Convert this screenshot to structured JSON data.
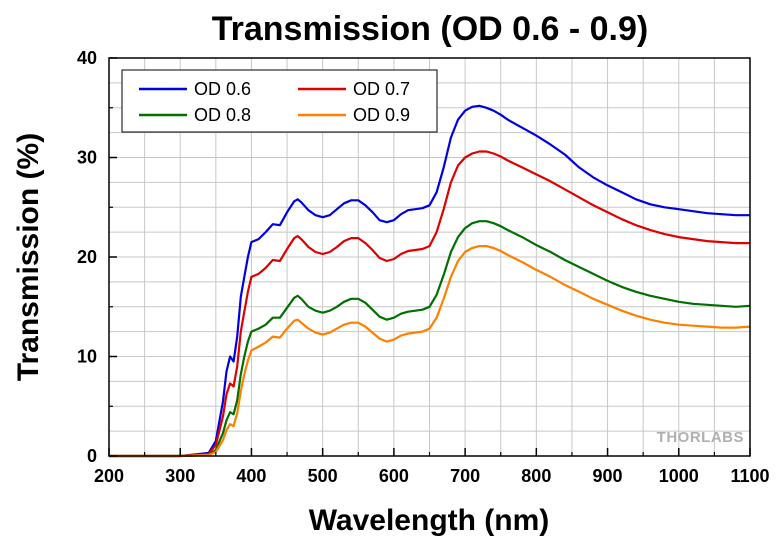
{
  "chart_data": {
    "type": "line",
    "title": "Transmission (OD 0.6 - 0.9)",
    "xlabel": "Wavelength (nm)",
    "ylabel": "Transmission (%)",
    "xlim": [
      200,
      1100
    ],
    "ylim": [
      0,
      40
    ],
    "xticks": [
      "200",
      "300",
      "400",
      "500",
      "600",
      "700",
      "800",
      "900",
      "1000",
      "1100"
    ],
    "yticks": [
      "0",
      "10",
      "20",
      "30",
      "40"
    ],
    "grid": true,
    "legend_position": "top-left",
    "watermark": "THORLABS",
    "series": [
      {
        "name": "OD 0.6",
        "color": "#0000e0",
        "x": [
          200,
          300,
          340,
          350,
          360,
          365,
          370,
          375,
          380,
          385,
          390,
          395,
          400,
          410,
          420,
          430,
          440,
          450,
          460,
          465,
          470,
          480,
          490,
          500,
          510,
          520,
          530,
          540,
          550,
          560,
          570,
          580,
          590,
          600,
          610,
          620,
          630,
          640,
          650,
          660,
          670,
          680,
          690,
          700,
          710,
          720,
          730,
          740,
          750,
          760,
          780,
          800,
          820,
          840,
          860,
          870,
          880,
          900,
          920,
          940,
          960,
          980,
          1000,
          1020,
          1040,
          1060,
          1080,
          1100
        ],
        "y": [
          0,
          0,
          0.3,
          1.5,
          5.5,
          8.5,
          10,
          9.5,
          12,
          16,
          18,
          20,
          21.5,
          21.8,
          22.5,
          23.3,
          23.2,
          24.5,
          25.6,
          25.8,
          25.5,
          24.7,
          24.2,
          24.0,
          24.2,
          24.8,
          25.4,
          25.7,
          25.7,
          25.2,
          24.5,
          23.7,
          23.5,
          23.7,
          24.3,
          24.7,
          24.8,
          24.9,
          25.2,
          26.5,
          29,
          32,
          33.8,
          34.7,
          35.1,
          35.2,
          35.0,
          34.7,
          34.3,
          33.8,
          33.0,
          32.2,
          31.3,
          30.3,
          29.0,
          28.5,
          28.0,
          27.2,
          26.5,
          25.8,
          25.3,
          25.0,
          24.8,
          24.6,
          24.4,
          24.3,
          24.2,
          24.2
        ]
      },
      {
        "name": "OD 0.7",
        "color": "#e00000",
        "x": [
          200,
          300,
          340,
          350,
          360,
          365,
          370,
          375,
          380,
          385,
          390,
          395,
          400,
          410,
          420,
          430,
          440,
          450,
          460,
          465,
          470,
          480,
          490,
          500,
          510,
          520,
          530,
          540,
          550,
          560,
          570,
          580,
          590,
          600,
          610,
          620,
          630,
          640,
          650,
          660,
          670,
          680,
          690,
          700,
          710,
          720,
          730,
          740,
          750,
          760,
          780,
          800,
          820,
          840,
          860,
          880,
          900,
          920,
          940,
          960,
          980,
          1000,
          1020,
          1040,
          1060,
          1080,
          1100
        ],
        "y": [
          0,
          0,
          0.2,
          1.1,
          4.0,
          6.2,
          7.3,
          7.0,
          9.0,
          12.5,
          14.5,
          16.5,
          18.0,
          18.3,
          18.9,
          19.7,
          19.6,
          20.8,
          21.9,
          22.1,
          21.8,
          21.0,
          20.5,
          20.3,
          20.5,
          21.0,
          21.6,
          21.9,
          21.9,
          21.4,
          20.7,
          19.9,
          19.6,
          19.8,
          20.3,
          20.6,
          20.7,
          20.8,
          21.1,
          22.5,
          24.8,
          27.5,
          29.2,
          30.0,
          30.4,
          30.6,
          30.6,
          30.4,
          30.1,
          29.7,
          29.0,
          28.3,
          27.6,
          26.8,
          26.0,
          25.2,
          24.5,
          23.8,
          23.2,
          22.7,
          22.3,
          22.0,
          21.8,
          21.6,
          21.5,
          21.4,
          21.4
        ]
      },
      {
        "name": "OD 0.8",
        "color": "#007000",
        "x": [
          200,
          300,
          340,
          350,
          360,
          365,
          370,
          375,
          380,
          385,
          390,
          395,
          400,
          410,
          420,
          430,
          440,
          450,
          460,
          465,
          470,
          480,
          490,
          500,
          510,
          520,
          530,
          540,
          550,
          560,
          570,
          580,
          590,
          600,
          610,
          620,
          630,
          640,
          650,
          660,
          670,
          680,
          690,
          700,
          710,
          720,
          730,
          740,
          750,
          760,
          780,
          800,
          820,
          840,
          860,
          880,
          900,
          920,
          940,
          960,
          980,
          1000,
          1020,
          1040,
          1060,
          1080,
          1100
        ],
        "y": [
          0,
          0,
          0.1,
          0.6,
          2.3,
          3.6,
          4.4,
          4.2,
          5.6,
          8.2,
          10.0,
          11.5,
          12.5,
          12.8,
          13.2,
          13.9,
          13.9,
          14.9,
          15.9,
          16.1,
          15.8,
          15.0,
          14.6,
          14.4,
          14.6,
          15.0,
          15.5,
          15.8,
          15.8,
          15.4,
          14.7,
          14.0,
          13.7,
          13.9,
          14.3,
          14.5,
          14.6,
          14.7,
          15.0,
          16.2,
          18.2,
          20.5,
          22.0,
          22.9,
          23.4,
          23.6,
          23.6,
          23.4,
          23.1,
          22.7,
          22.0,
          21.2,
          20.5,
          19.7,
          19.0,
          18.3,
          17.6,
          17.0,
          16.5,
          16.1,
          15.8,
          15.5,
          15.3,
          15.2,
          15.1,
          15.0,
          15.1
        ]
      },
      {
        "name": "OD 0.9",
        "color": "#ff8000",
        "x": [
          200,
          300,
          340,
          350,
          360,
          365,
          370,
          375,
          380,
          385,
          390,
          395,
          400,
          410,
          420,
          430,
          440,
          450,
          460,
          465,
          470,
          480,
          490,
          500,
          510,
          520,
          530,
          540,
          550,
          560,
          570,
          580,
          590,
          600,
          610,
          620,
          630,
          640,
          650,
          660,
          670,
          680,
          690,
          700,
          710,
          720,
          730,
          740,
          750,
          760,
          780,
          800,
          820,
          840,
          860,
          880,
          900,
          920,
          940,
          960,
          980,
          1000,
          1020,
          1040,
          1060,
          1080,
          1100
        ],
        "y": [
          0,
          0,
          0.1,
          0.4,
          1.6,
          2.6,
          3.2,
          3.0,
          4.3,
          6.5,
          8.2,
          9.6,
          10.6,
          11.0,
          11.4,
          12.0,
          11.9,
          12.8,
          13.6,
          13.7,
          13.4,
          12.8,
          12.4,
          12.2,
          12.4,
          12.8,
          13.2,
          13.4,
          13.4,
          13.0,
          12.4,
          11.8,
          11.5,
          11.7,
          12.1,
          12.3,
          12.4,
          12.5,
          12.8,
          13.9,
          15.8,
          18.0,
          19.6,
          20.5,
          20.9,
          21.1,
          21.1,
          20.9,
          20.6,
          20.2,
          19.5,
          18.7,
          18.0,
          17.2,
          16.5,
          15.8,
          15.2,
          14.6,
          14.1,
          13.7,
          13.4,
          13.2,
          13.1,
          13.0,
          12.9,
          12.9,
          13.0
        ]
      }
    ]
  }
}
